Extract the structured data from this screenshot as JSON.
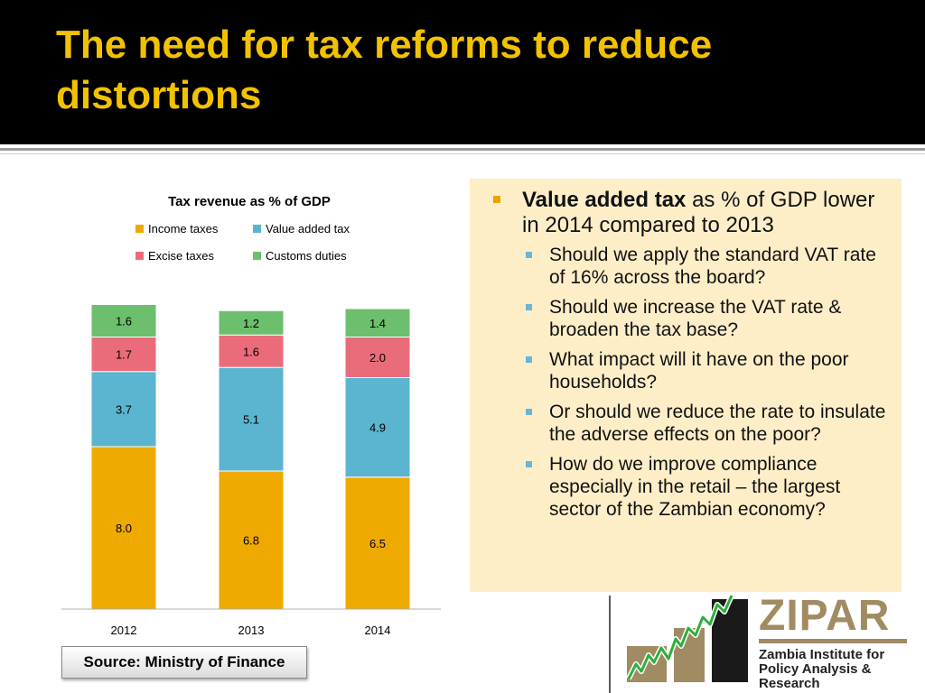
{
  "slide": {
    "title": "The need for tax reforms to reduce distortions"
  },
  "chart_data": {
    "type": "bar",
    "stacked": true,
    "title": "Tax revenue as % of GDP",
    "categories": [
      "2012",
      "2013",
      "2014"
    ],
    "series": [
      {
        "name": "Income taxes",
        "values": [
          8.0,
          6.8,
          6.5
        ],
        "color": "#eeaa00"
      },
      {
        "name": "Value added tax",
        "values": [
          3.7,
          5.1,
          4.9
        ],
        "color": "#5bb4d0"
      },
      {
        "name": "Excise taxes",
        "values": [
          1.7,
          1.6,
          2.0
        ],
        "color": "#ea6c7a"
      },
      {
        "name": "Customs duties",
        "values": [
          1.6,
          1.2,
          1.4
        ],
        "color": "#6cbf6c"
      }
    ],
    "value_labels": [
      [
        "8.0",
        "6.8",
        "6.5"
      ],
      [
        "3.7",
        "5.1",
        "4.9"
      ],
      [
        "1.7",
        "1.6",
        "2.0"
      ],
      [
        "1.6",
        "1.2",
        "1.4"
      ]
    ],
    "legend_position": "top",
    "grid": false,
    "ylim": [
      0,
      16
    ]
  },
  "source": "Source: Ministry of Finance",
  "notes": {
    "main_bold": "Value added tax",
    "main_rest": " as % of GDP lower in 2014 compared to 2013",
    "items": [
      "Should we apply the standard VAT rate of 16% across the board?",
      "Should we increase the VAT rate & broaden the tax base?",
      "What impact will it have on the poor households?",
      "Or should we reduce the rate to insulate the adverse effects on the poor?",
      "How do we improve compliance especially in the retail – the largest sector of the Zambian economy?"
    ]
  },
  "logo": {
    "word": "ZIPAR",
    "name": "Zambia Institute for Policy Analysis & Research"
  },
  "colors": {
    "title": "#f2c200",
    "title_background": "#000000",
    "notes_background": "#fdeec8",
    "main_bullet": "#e8a400",
    "sub_bullet": "#6bb5d6"
  }
}
